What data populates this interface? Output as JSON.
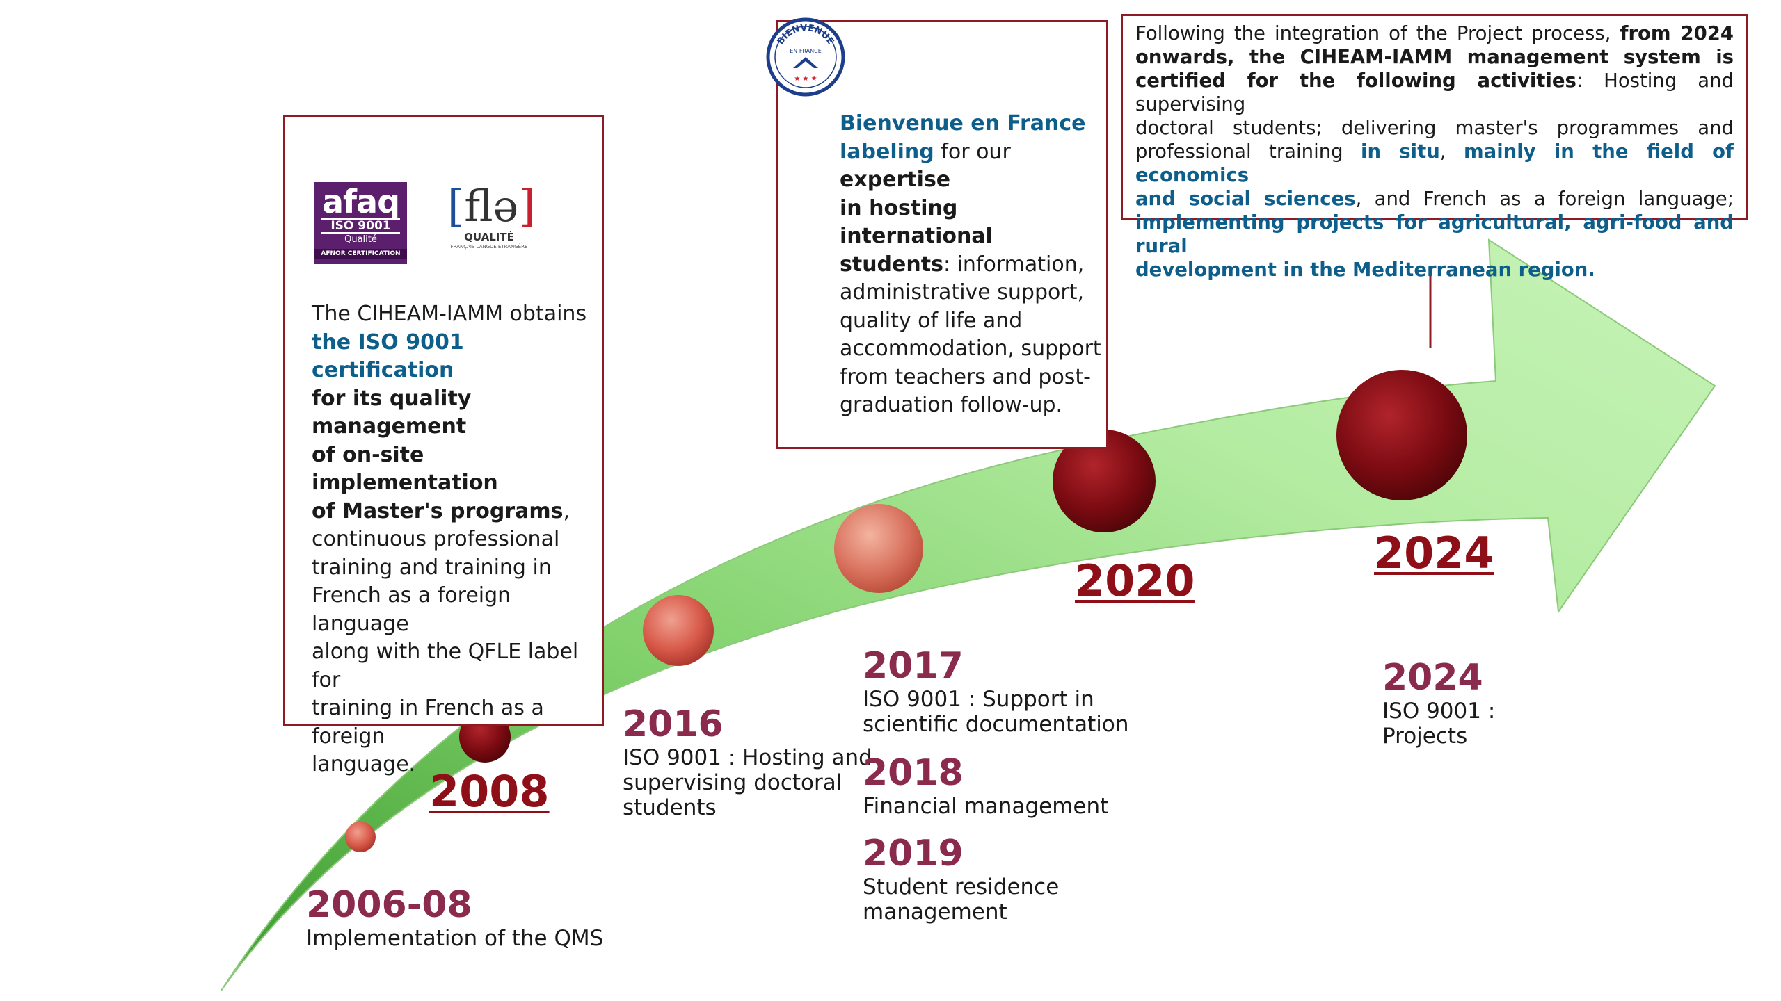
{
  "milestones": [
    {
      "year": "2006-08",
      "desc": "Implementation of the QMS"
    },
    {
      "year": "2016",
      "desc_lines": [
        "ISO 9001 : Hosting and",
        "supervising doctoral",
        "students"
      ]
    },
    {
      "year": "2017",
      "desc_lines": [
        "ISO 9001 : Support in",
        "scientific documentation"
      ]
    },
    {
      "year": "2018",
      "desc": "Financial management"
    },
    {
      "year": "2019",
      "desc_lines": [
        "Student residence",
        "management"
      ]
    },
    {
      "year": "2024",
      "desc_lines": [
        "ISO 9001 :",
        "Projects"
      ]
    }
  ],
  "big_years": {
    "y2008": "2008",
    "y2020": "2020",
    "y2024": "2024"
  },
  "box_2008": {
    "logo_afaq": {
      "name": "afaq",
      "iso": "ISO 9001",
      "qualite": "Qualité",
      "afnor": "AFNOR CERTIFICATION"
    },
    "logo_fle": {
      "left_bracket": "[",
      "text": "flə",
      "right_bracket": "]",
      "qualite": "QUALITÉ",
      "sub": "FRANÇAIS LANGUE ÉTRANGÈRE"
    },
    "text": {
      "p1": "The CIHEAM-IAMM obtains",
      "p2": "the ISO 9001 certification",
      "p3": "for its quality management",
      "p4": "of on-site implementation",
      "p5": "of Master's programs",
      "p5b": ",",
      "p6": "continuous professional",
      "p7": "training and training in",
      "p8": "French as a foreign language",
      "p9": "along with the QFLE label for",
      "p10": "training in French as a foreign",
      "p11": "language."
    }
  },
  "box_2020": {
    "seal": {
      "top": "BIENVENUE",
      "mid": "EN FRANCE",
      "stars": "★ ★ ★"
    },
    "l1": "Bienvenue en France",
    "l2a": "labeling",
    "l2b": " for our ",
    "l2c": "expertise",
    "l3": "in hosting international",
    "l4a": "students",
    "l4b": ": information,",
    "l5": "administrative support,",
    "l6": "quality of life and",
    "l7": "accommodation, support",
    "l8": "from teachers and post-",
    "l9": "graduation follow-up."
  },
  "box_2024": {
    "l1a": "Following the integration of the Project process, ",
    "l1b": "from 2024",
    "l2": "onwards, the CIHEAM-IAMM management system is",
    "l3a": "certified for the following activities",
    "l3b": ": Hosting and supervising",
    "l4": "doctoral students; delivering master's programmes and",
    "l5a": "professional training ",
    "l5b": "in situ",
    "l5c": ", ",
    "l5d": "mainly in the field of economics",
    "l6a": "and social sciences",
    "l6b": ", and French as a foreign language;",
    "l7": "implementing projects for agricultural, agri-food and rural",
    "l8": "development in the Mediterranean region."
  },
  "colors": {
    "arrow_fill": "#a6e494",
    "arrow_dark": "#4fb43a",
    "border": "#8e1b24",
    "year_purple": "#8a2a4c",
    "year_red": "#8e0f18",
    "blue_text": "#0e5e8c"
  }
}
